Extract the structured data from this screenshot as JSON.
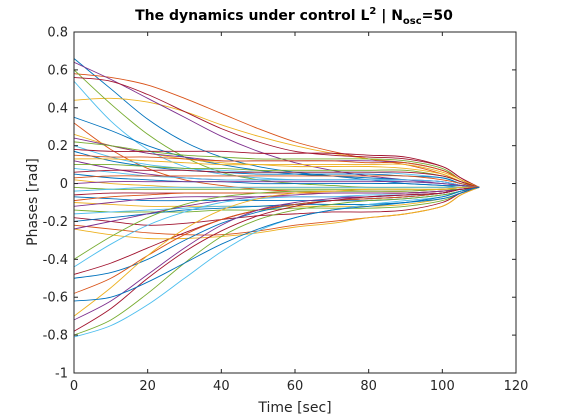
{
  "chart_data": {
    "type": "line",
    "title": {
      "prefix": "The dynamics under control L",
      "superscript": "2",
      "middle": " | N",
      "subscript": "osc",
      "suffix": "=50"
    },
    "xlabel": "Time [sec]",
    "ylabel": "Phases [rad]",
    "xlim": [
      0,
      120
    ],
    "ylim": [
      -1,
      0.8
    ],
    "x_ticks": [
      0,
      20,
      40,
      60,
      80,
      100,
      120
    ],
    "x_tick_labels": [
      "0",
      "20",
      "40",
      "60",
      "80",
      "100",
      "120"
    ],
    "y_ticks": [
      -1,
      -0.8,
      -0.6,
      -0.4,
      -0.2,
      0,
      0.2,
      0.4,
      0.6,
      0.8
    ],
    "y_tick_labels": [
      "-1",
      "-0.8",
      "-0.6",
      "-0.4",
      "-0.2",
      "0",
      "0.2",
      "0.4",
      "0.6",
      "0.8"
    ],
    "grid": false,
    "legend": "none",
    "x": [
      0,
      10,
      20,
      30,
      40,
      50,
      60,
      70,
      80,
      90,
      100,
      105,
      110
    ],
    "series_colors": [
      "#0072bd",
      "#d95319",
      "#edb120",
      "#7e2f8e",
      "#77ac30",
      "#4dbeee",
      "#a2142f"
    ],
    "series": [
      {
        "values": [
          0.66,
          0.5,
          0.34,
          0.22,
          0.14,
          0.09,
          0.06,
          0.04,
          0.02,
          0.0,
          -0.01,
          -0.02,
          -0.02
        ]
      },
      {
        "values": [
          0.58,
          0.56,
          0.52,
          0.45,
          0.37,
          0.29,
          0.22,
          0.17,
          0.13,
          0.1,
          0.05,
          0.01,
          -0.02
        ]
      },
      {
        "values": [
          0.44,
          0.45,
          0.43,
          0.38,
          0.31,
          0.25,
          0.2,
          0.16,
          0.13,
          0.11,
          0.07,
          0.02,
          -0.02
        ]
      },
      {
        "values": [
          0.64,
          0.55,
          0.45,
          0.35,
          0.25,
          0.17,
          0.11,
          0.07,
          0.04,
          0.02,
          0.0,
          -0.01,
          -0.02
        ]
      },
      {
        "values": [
          0.6,
          0.42,
          0.26,
          0.14,
          0.06,
          0.02,
          0.0,
          -0.01,
          -0.02,
          -0.02,
          -0.02,
          -0.02,
          -0.02
        ]
      },
      {
        "values": [
          0.54,
          0.33,
          0.18,
          0.09,
          0.05,
          0.03,
          0.02,
          0.02,
          0.02,
          0.01,
          0.0,
          -0.01,
          -0.02
        ]
      },
      {
        "values": [
          0.56,
          0.54,
          0.47,
          0.38,
          0.29,
          0.22,
          0.17,
          0.15,
          0.14,
          0.13,
          0.09,
          0.03,
          -0.02
        ]
      },
      {
        "values": [
          0.35,
          0.28,
          0.2,
          0.14,
          0.1,
          0.07,
          0.05,
          0.04,
          0.03,
          0.02,
          0.01,
          -0.01,
          -0.02
        ]
      },
      {
        "values": [
          0.32,
          0.18,
          0.08,
          0.02,
          -0.01,
          -0.03,
          -0.04,
          -0.04,
          -0.04,
          -0.04,
          -0.03,
          -0.03,
          -0.02
        ]
      },
      {
        "values": [
          0.26,
          0.2,
          0.16,
          0.13,
          0.11,
          0.1,
          0.09,
          0.09,
          0.09,
          0.08,
          0.05,
          0.01,
          -0.02
        ]
      },
      {
        "values": [
          0.24,
          0.2,
          0.16,
          0.14,
          0.12,
          0.12,
          0.12,
          0.12,
          0.12,
          0.11,
          0.07,
          0.02,
          -0.02
        ]
      },
      {
        "values": [
          0.22,
          0.2,
          0.17,
          0.15,
          0.14,
          0.13,
          0.13,
          0.13,
          0.13,
          0.12,
          0.08,
          0.02,
          -0.02
        ]
      },
      {
        "values": [
          0.2,
          0.14,
          0.1,
          0.08,
          0.07,
          0.06,
          0.06,
          0.06,
          0.06,
          0.05,
          0.03,
          0.0,
          -0.02
        ]
      },
      {
        "values": [
          0.18,
          0.17,
          0.17,
          0.17,
          0.17,
          0.16,
          0.16,
          0.16,
          0.15,
          0.14,
          0.09,
          0.03,
          -0.02
        ]
      },
      {
        "values": [
          0.17,
          0.12,
          0.09,
          0.07,
          0.06,
          0.05,
          0.05,
          0.05,
          0.05,
          0.04,
          0.03,
          0.0,
          -0.02
        ]
      },
      {
        "values": [
          0.15,
          0.14,
          0.14,
          0.13,
          0.12,
          0.12,
          0.12,
          0.12,
          0.11,
          0.11,
          0.07,
          0.02,
          -0.02
        ]
      },
      {
        "values": [
          0.13,
          0.13,
          0.12,
          0.11,
          0.1,
          0.1,
          0.1,
          0.1,
          0.1,
          0.1,
          0.06,
          0.02,
          -0.02
        ]
      },
      {
        "values": [
          0.12,
          0.08,
          0.05,
          0.03,
          0.02,
          0.02,
          0.02,
          0.02,
          0.02,
          0.02,
          0.01,
          -0.01,
          -0.02
        ]
      },
      {
        "values": [
          0.1,
          0.1,
          0.09,
          0.08,
          0.08,
          0.07,
          0.07,
          0.07,
          0.07,
          0.07,
          0.04,
          0.01,
          -0.02
        ]
      },
      {
        "values": [
          0.08,
          0.06,
          0.04,
          0.03,
          0.02,
          0.02,
          0.02,
          0.02,
          0.02,
          0.02,
          0.01,
          -0.01,
          -0.02
        ]
      },
      {
        "values": [
          0.06,
          0.07,
          0.07,
          0.07,
          0.06,
          0.06,
          0.06,
          0.06,
          0.06,
          0.06,
          0.04,
          0.01,
          -0.02
        ]
      },
      {
        "values": [
          0.05,
          0.03,
          0.02,
          0.01,
          0.01,
          0.0,
          0.0,
          0.0,
          0.0,
          0.0,
          -0.01,
          -0.01,
          -0.02
        ]
      },
      {
        "values": [
          0.03,
          0.04,
          0.04,
          0.04,
          0.04,
          0.04,
          0.04,
          0.04,
          0.04,
          0.04,
          0.02,
          0.0,
          -0.02
        ]
      },
      {
        "values": [
          0.02,
          0.0,
          -0.01,
          -0.02,
          -0.02,
          -0.02,
          -0.02,
          -0.02,
          -0.02,
          -0.02,
          -0.02,
          -0.02,
          -0.02
        ]
      },
      {
        "values": [
          0.0,
          0.01,
          0.01,
          0.01,
          0.01,
          0.01,
          0.01,
          0.01,
          0.01,
          0.01,
          0.0,
          -0.01,
          -0.02
        ]
      },
      {
        "values": [
          -0.02,
          -0.03,
          -0.03,
          -0.03,
          -0.03,
          -0.03,
          -0.03,
          -0.03,
          -0.03,
          -0.03,
          -0.03,
          -0.02,
          -0.02
        ]
      },
      {
        "values": [
          -0.04,
          -0.03,
          -0.02,
          -0.02,
          -0.02,
          -0.02,
          -0.02,
          -0.02,
          -0.02,
          -0.02,
          -0.02,
          -0.02,
          -0.02
        ]
      },
      {
        "values": [
          -0.06,
          -0.05,
          -0.05,
          -0.05,
          -0.05,
          -0.05,
          -0.05,
          -0.05,
          -0.05,
          -0.05,
          -0.04,
          -0.03,
          -0.02
        ]
      },
      {
        "values": [
          -0.07,
          -0.08,
          -0.09,
          -0.09,
          -0.09,
          -0.09,
          -0.09,
          -0.09,
          -0.09,
          -0.08,
          -0.06,
          -0.04,
          -0.02
        ]
      },
      {
        "values": [
          -0.09,
          -0.07,
          -0.06,
          -0.05,
          -0.05,
          -0.05,
          -0.05,
          -0.05,
          -0.05,
          -0.05,
          -0.04,
          -0.03,
          -0.02
        ]
      },
      {
        "values": [
          -0.1,
          -0.11,
          -0.12,
          -0.12,
          -0.12,
          -0.12,
          -0.12,
          -0.12,
          -0.12,
          -0.11,
          -0.08,
          -0.05,
          -0.02
        ]
      },
      {
        "values": [
          -0.12,
          -0.1,
          -0.08,
          -0.07,
          -0.07,
          -0.07,
          -0.07,
          -0.07,
          -0.07,
          -0.06,
          -0.05,
          -0.03,
          -0.02
        ]
      },
      {
        "values": [
          -0.14,
          -0.15,
          -0.15,
          -0.15,
          -0.14,
          -0.14,
          -0.13,
          -0.13,
          -0.13,
          -0.12,
          -0.09,
          -0.05,
          -0.02
        ]
      },
      {
        "values": [
          -0.16,
          -0.15,
          -0.14,
          -0.13,
          -0.12,
          -0.12,
          -0.11,
          -0.11,
          -0.11,
          -0.1,
          -0.08,
          -0.05,
          -0.02
        ]
      },
      {
        "values": [
          -0.18,
          -0.2,
          -0.22,
          -0.21,
          -0.19,
          -0.17,
          -0.16,
          -0.15,
          -0.15,
          -0.14,
          -0.1,
          -0.05,
          -0.02
        ]
      },
      {
        "values": [
          -0.2,
          -0.18,
          -0.16,
          -0.14,
          -0.13,
          -0.12,
          -0.11,
          -0.11,
          -0.11,
          -0.1,
          -0.08,
          -0.05,
          -0.02
        ]
      },
      {
        "values": [
          -0.22,
          -0.24,
          -0.26,
          -0.27,
          -0.27,
          -0.25,
          -0.22,
          -0.2,
          -0.18,
          -0.16,
          -0.12,
          -0.06,
          -0.02
        ]
      },
      {
        "values": [
          -0.24,
          -0.27,
          -0.29,
          -0.29,
          -0.28,
          -0.26,
          -0.23,
          -0.21,
          -0.18,
          -0.16,
          -0.12,
          -0.06,
          -0.02
        ]
      },
      {
        "values": [
          -0.24,
          -0.2,
          -0.16,
          -0.12,
          -0.09,
          -0.07,
          -0.06,
          -0.05,
          -0.05,
          -0.05,
          -0.04,
          -0.03,
          -0.02
        ]
      },
      {
        "values": [
          -0.4,
          -0.28,
          -0.18,
          -0.11,
          -0.07,
          -0.05,
          -0.04,
          -0.04,
          -0.04,
          -0.04,
          -0.03,
          -0.03,
          -0.02
        ]
      },
      {
        "values": [
          -0.44,
          -0.32,
          -0.22,
          -0.15,
          -0.1,
          -0.08,
          -0.07,
          -0.07,
          -0.06,
          -0.06,
          -0.05,
          -0.03,
          -0.02
        ]
      },
      {
        "values": [
          -0.48,
          -0.42,
          -0.34,
          -0.26,
          -0.19,
          -0.14,
          -0.11,
          -0.09,
          -0.08,
          -0.07,
          -0.05,
          -0.03,
          -0.02
        ]
      },
      {
        "values": [
          -0.5,
          -0.47,
          -0.4,
          -0.3,
          -0.21,
          -0.15,
          -0.11,
          -0.09,
          -0.08,
          -0.07,
          -0.05,
          -0.03,
          -0.02
        ]
      },
      {
        "values": [
          -0.58,
          -0.5,
          -0.38,
          -0.27,
          -0.19,
          -0.14,
          -0.11,
          -0.09,
          -0.08,
          -0.07,
          -0.05,
          -0.03,
          -0.02
        ]
      },
      {
        "values": [
          -0.7,
          -0.55,
          -0.38,
          -0.24,
          -0.14,
          -0.08,
          -0.05,
          -0.04,
          -0.03,
          -0.03,
          -0.03,
          -0.02,
          -0.02
        ]
      },
      {
        "values": [
          -0.72,
          -0.62,
          -0.48,
          -0.34,
          -0.22,
          -0.14,
          -0.1,
          -0.08,
          -0.07,
          -0.06,
          -0.05,
          -0.03,
          -0.02
        ]
      },
      {
        "values": [
          -0.8,
          -0.72,
          -0.58,
          -0.42,
          -0.28,
          -0.19,
          -0.14,
          -0.11,
          -0.09,
          -0.08,
          -0.06,
          -0.04,
          -0.02
        ]
      },
      {
        "values": [
          -0.81,
          -0.75,
          -0.64,
          -0.5,
          -0.36,
          -0.25,
          -0.18,
          -0.14,
          -0.11,
          -0.09,
          -0.07,
          -0.04,
          -0.02
        ]
      },
      {
        "values": [
          -0.78,
          -0.66,
          -0.5,
          -0.36,
          -0.25,
          -0.17,
          -0.12,
          -0.09,
          -0.07,
          -0.06,
          -0.05,
          -0.03,
          -0.02
        ]
      },
      {
        "values": [
          -0.62,
          -0.6,
          -0.52,
          -0.42,
          -0.32,
          -0.24,
          -0.18,
          -0.14,
          -0.12,
          -0.1,
          -0.07,
          -0.04,
          -0.02
        ]
      }
    ]
  }
}
